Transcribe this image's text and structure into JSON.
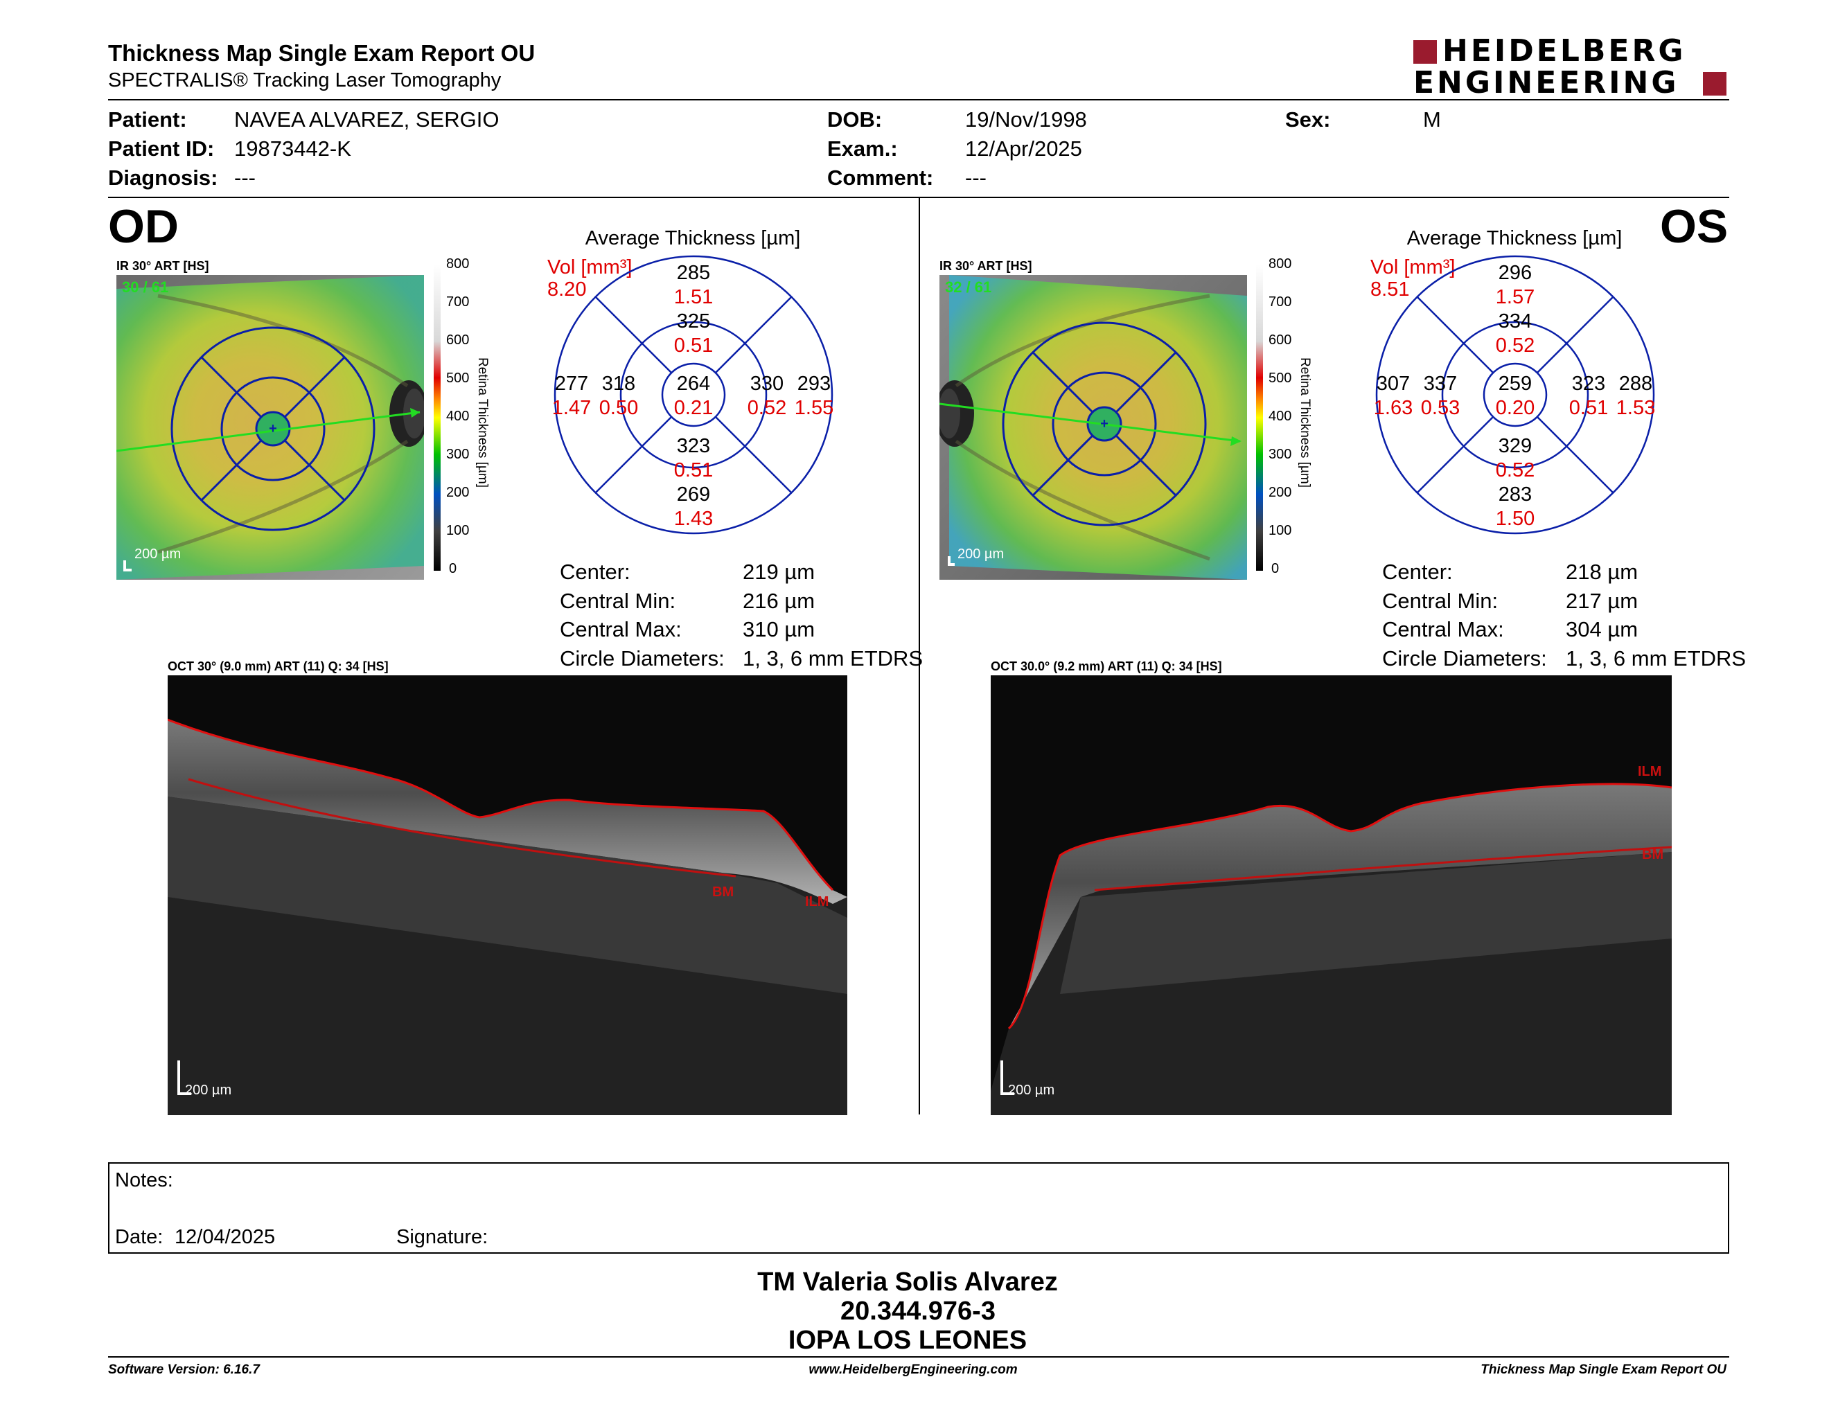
{
  "header": {
    "title": "Thickness Map Single Exam Report OU",
    "subtitle": "SPECTRALIS® Tracking Laser Tomography",
    "logo_line1": "HEIDELBERG",
    "logo_line2": "ENGINEERING"
  },
  "patient": {
    "name_label": "Patient:",
    "name": "NAVEA ALVAREZ, SERGIO",
    "id_label": "Patient ID:",
    "id": "19873442-K",
    "diagnosis_label": "Diagnosis:",
    "diagnosis": "---",
    "dob_label": "DOB:",
    "dob": "19/Nov/1998",
    "exam_label": "Exam.:",
    "exam": "12/Apr/2025",
    "comment_label": "Comment:",
    "comment": "---",
    "sex_label": "Sex:",
    "sex": "M"
  },
  "od": {
    "eye": "OD",
    "fundus_label": "IR 30° ART [HS]",
    "fundus_counter": "30 / 61",
    "fundus_scale": "200 µm",
    "colorbar_ticks": [
      "800",
      "700",
      "600",
      "500",
      "400",
      "300",
      "200",
      "100",
      "0"
    ],
    "colorbar_title": "Retina Thickness [µm]",
    "avg_title": "Average Thickness [µm]",
    "vol_label": "Vol [mm³]",
    "vol_value": "8.20",
    "sectors": {
      "outer_sup": {
        "t": "285",
        "v": "1.51"
      },
      "inner_sup": {
        "t": "325",
        "v": "0.51"
      },
      "outer_temp": {
        "t": "277",
        "v": "1.47"
      },
      "inner_temp": {
        "t": "318",
        "v": "0.50"
      },
      "center": {
        "t": "264",
        "v": "0.21"
      },
      "inner_nas": {
        "t": "330",
        "v": "0.52"
      },
      "outer_nas": {
        "t": "293",
        "v": "1.55"
      },
      "inner_inf": {
        "t": "323",
        "v": "0.51"
      },
      "outer_inf": {
        "t": "269",
        "v": "1.43"
      }
    },
    "stats": {
      "center_label": "Center:",
      "center": "219 µm",
      "min_label": "Central Min:",
      "min": "216 µm",
      "max_label": "Central Max:",
      "max": "310 µm",
      "diam_label": "Circle Diameters:",
      "diam": "1, 3, 6 mm ETDRS"
    },
    "oct_label": "OCT 30° (9.0 mm) ART (11) Q: 34 [HS]",
    "oct_scale": "200 µm",
    "ilm": "ILM",
    "bm": "BM"
  },
  "os": {
    "eye": "OS",
    "fundus_label": "IR 30° ART [HS]",
    "fundus_counter": "32 / 61",
    "fundus_scale": "200 µm",
    "colorbar_ticks": [
      "800",
      "700",
      "600",
      "500",
      "400",
      "300",
      "200",
      "100",
      "0"
    ],
    "colorbar_title": "Retina Thickness [µm]",
    "avg_title": "Average Thickness [µm]",
    "vol_label": "Vol [mm³]",
    "vol_value": "8.51",
    "sectors": {
      "outer_sup": {
        "t": "296",
        "v": "1.57"
      },
      "inner_sup": {
        "t": "334",
        "v": "0.52"
      },
      "outer_temp": {
        "t": "307",
        "v": "1.63"
      },
      "inner_temp": {
        "t": "337",
        "v": "0.53"
      },
      "center": {
        "t": "259",
        "v": "0.20"
      },
      "inner_nas": {
        "t": "323",
        "v": "0.51"
      },
      "outer_nas": {
        "t": "288",
        "v": "1.53"
      },
      "inner_inf": {
        "t": "329",
        "v": "0.52"
      },
      "outer_inf": {
        "t": "283",
        "v": "1.50"
      }
    },
    "stats": {
      "center_label": "Center:",
      "center": "218 µm",
      "min_label": "Central Min:",
      "min": "217 µm",
      "max_label": "Central Max:",
      "max": "304 µm",
      "diam_label": "Circle Diameters:",
      "diam": "1, 3, 6 mm ETDRS"
    },
    "oct_label": "OCT 30.0° (9.2 mm) ART (11) Q: 34 [HS]",
    "oct_scale": "200 µm",
    "ilm": "ILM",
    "bm": "BM"
  },
  "notes": {
    "notes_label": "Notes:",
    "date_label": "Date:",
    "date": "12/04/2025",
    "signature_label": "Signature:"
  },
  "signatory": {
    "name": "TM Valeria Solis Alvarez",
    "rut": "20.344.976-3",
    "institution": "IOPA LOS LEONES"
  },
  "footer": {
    "software": "Software Version: 6.16.7",
    "website": "www.HeidelbergEngineering.com",
    "report": "Thickness Map Single Exam Report OU"
  }
}
